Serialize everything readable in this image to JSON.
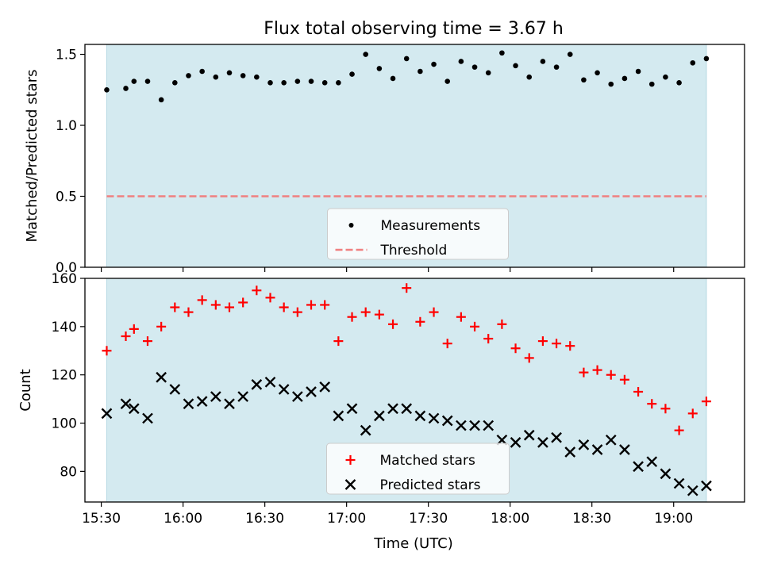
{
  "figure": {
    "title": "Flux total observing time = 3.67 h",
    "xlabel": "Time (UTC)"
  },
  "colors": {
    "background_band": "#d4eaf0",
    "band_edge": "#b7d9e3",
    "matched": "#ff0000",
    "predicted": "#000000",
    "measurement": "#000000",
    "threshold": "#f08080"
  },
  "chart_data": [
    {
      "type": "scatter",
      "panel": "top",
      "title": "Flux total observing time = 3.67 h",
      "xlabel": "",
      "ylabel": "Matched/Predicted stars",
      "ylim": [
        0,
        1.57
      ],
      "yticks": [
        0.0,
        0.5,
        1.0,
        1.5
      ],
      "ytick_labels": [
        "0.0",
        "0.5",
        "1.0",
        "1.5"
      ],
      "xlim": [
        "15:24",
        "19:26"
      ],
      "shaded_interval": [
        "15:32",
        "19:12"
      ],
      "grid": false,
      "legend_position": "lower center",
      "series": [
        {
          "name": "Measurements",
          "marker": "dot",
          "x": [
            "15:32",
            "15:39",
            "15:42",
            "15:47",
            "15:52",
            "15:57",
            "16:02",
            "16:07",
            "16:12",
            "16:17",
            "16:22",
            "16:27",
            "16:32",
            "16:37",
            "16:42",
            "16:47",
            "16:52",
            "16:57",
            "17:02",
            "17:07",
            "17:12",
            "17:17",
            "17:22",
            "17:27",
            "17:32",
            "17:37",
            "17:42",
            "17:47",
            "17:52",
            "17:57",
            "18:02",
            "18:07",
            "18:12",
            "18:17",
            "18:22",
            "18:27",
            "18:32",
            "18:37",
            "18:42",
            "18:47",
            "18:52",
            "18:57",
            "19:02",
            "19:07",
            "19:12"
          ],
          "y": [
            1.25,
            1.26,
            1.31,
            1.31,
            1.18,
            1.3,
            1.35,
            1.38,
            1.34,
            1.37,
            1.35,
            1.34,
            1.3,
            1.3,
            1.31,
            1.31,
            1.3,
            1.3,
            1.36,
            1.5,
            1.4,
            1.33,
            1.47,
            1.38,
            1.43,
            1.31,
            1.45,
            1.41,
            1.37,
            1.51,
            1.42,
            1.34,
            1.45,
            1.41,
            1.5,
            1.32,
            1.37,
            1.29,
            1.33,
            1.38,
            1.29,
            1.34,
            1.3,
            1.44,
            1.47
          ]
        },
        {
          "name": "Threshold",
          "style": "dashed",
          "value": 0.5
        }
      ]
    },
    {
      "type": "scatter",
      "panel": "bottom",
      "xlabel": "Time (UTC)",
      "ylabel": "Count",
      "ylim": [
        67.3,
        160
      ],
      "yticks": [
        80,
        100,
        120,
        140,
        160
      ],
      "ytick_labels": [
        "80",
        "100",
        "120",
        "140",
        "160"
      ],
      "xlim": [
        "15:24",
        "19:26"
      ],
      "xticks": [
        "15:30",
        "16:00",
        "16:30",
        "17:00",
        "17:30",
        "18:00",
        "18:30",
        "19:00"
      ],
      "xtick_labels": [
        "15:30",
        "16:00",
        "16:30",
        "17:00",
        "17:30",
        "18:00",
        "18:30",
        "19:00"
      ],
      "shaded_interval": [
        "15:32",
        "19:12"
      ],
      "grid": false,
      "legend_position": "lower center",
      "series": [
        {
          "name": "Matched stars",
          "marker": "plus",
          "x": [
            "15:32",
            "15:39",
            "15:42",
            "15:47",
            "15:52",
            "15:57",
            "16:02",
            "16:07",
            "16:12",
            "16:17",
            "16:22",
            "16:27",
            "16:32",
            "16:37",
            "16:42",
            "16:47",
            "16:52",
            "16:57",
            "17:02",
            "17:07",
            "17:12",
            "17:17",
            "17:22",
            "17:27",
            "17:32",
            "17:37",
            "17:42",
            "17:47",
            "17:52",
            "17:57",
            "18:02",
            "18:07",
            "18:12",
            "18:17",
            "18:22",
            "18:27",
            "18:32",
            "18:37",
            "18:42",
            "18:47",
            "18:52",
            "18:57",
            "19:02",
            "19:07",
            "19:12"
          ],
          "y": [
            130,
            136,
            139,
            134,
            140,
            148,
            146,
            151,
            149,
            148,
            150,
            155,
            152,
            148,
            146,
            149,
            149,
            134,
            144,
            146,
            145,
            141,
            156,
            142,
            146,
            133,
            144,
            140,
            135,
            141,
            131,
            127,
            134,
            133,
            132,
            121,
            122,
            120,
            118,
            113,
            108,
            106,
            97,
            104,
            109
          ]
        },
        {
          "name": "Predicted stars",
          "marker": "x",
          "x": [
            "15:32",
            "15:39",
            "15:42",
            "15:47",
            "15:52",
            "15:57",
            "16:02",
            "16:07",
            "16:12",
            "16:17",
            "16:22",
            "16:27",
            "16:32",
            "16:37",
            "16:42",
            "16:47",
            "16:52",
            "16:57",
            "17:02",
            "17:07",
            "17:12",
            "17:17",
            "17:22",
            "17:27",
            "17:32",
            "17:37",
            "17:42",
            "17:47",
            "17:52",
            "17:57",
            "18:02",
            "18:07",
            "18:12",
            "18:17",
            "18:22",
            "18:27",
            "18:32",
            "18:37",
            "18:42",
            "18:47",
            "18:52",
            "18:57",
            "19:02",
            "19:07",
            "19:12"
          ],
          "y": [
            104,
            108,
            106,
            102,
            119,
            114,
            108,
            109,
            111,
            108,
            111,
            116,
            117,
            114,
            111,
            113,
            115,
            103,
            106,
            97,
            103,
            106,
            106,
            103,
            102,
            101,
            99,
            99,
            99,
            93,
            92,
            95,
            92,
            94,
            88,
            91,
            89,
            93,
            89,
            82,
            84,
            79,
            75,
            72,
            74
          ]
        }
      ]
    }
  ]
}
